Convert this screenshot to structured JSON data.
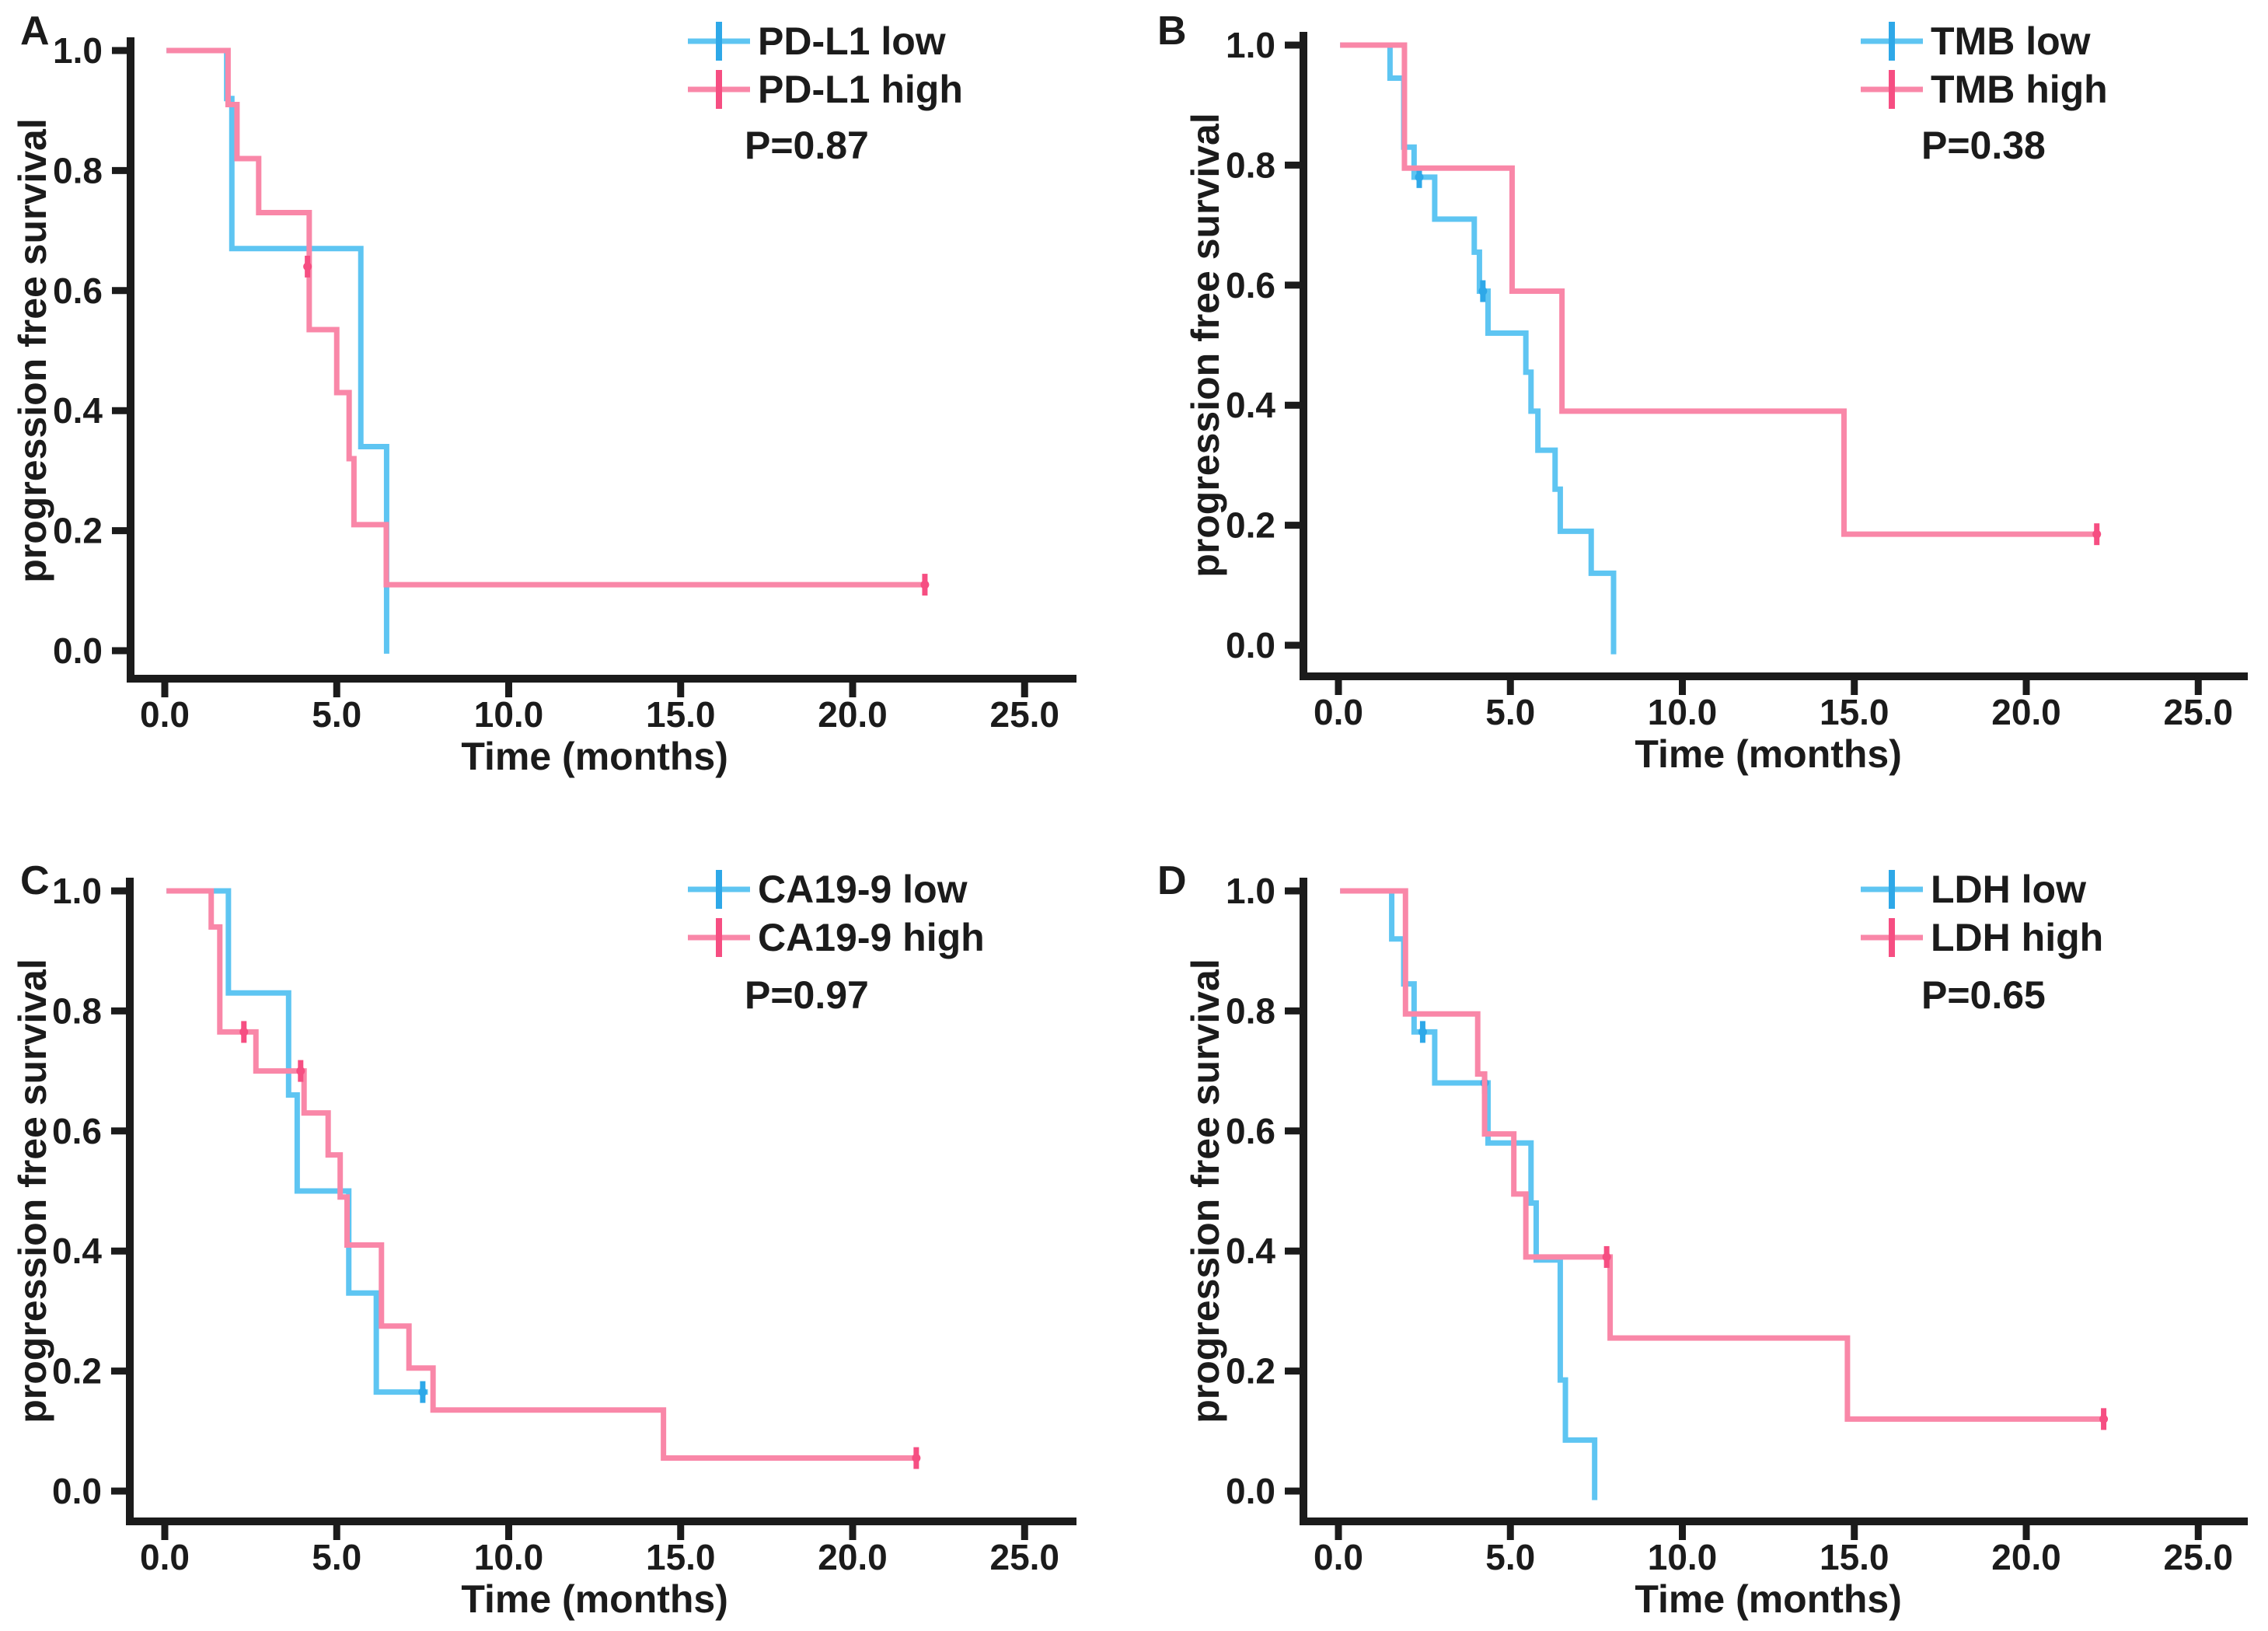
{
  "figure": {
    "background": "#ffffff",
    "text_color": "#1b1b1b",
    "blue": "#5EC5F2",
    "pink": "#F987A8"
  },
  "chart_data": [
    {
      "type": "km-step",
      "panel": "A",
      "letter": "A",
      "xlabel": "Time (months)",
      "ylabel": "progression free survival",
      "p_label": "P=0.87",
      "xlim": [
        0,
        26.5
      ],
      "ylim": [
        0,
        1
      ],
      "x_tick_values": [
        0,
        5,
        10,
        15,
        20,
        25
      ],
      "x_tick_labels": [
        "0.0",
        "5.0",
        "10.0",
        "15.0",
        "20.0",
        "25.0"
      ],
      "y_tick_values": [
        1.0,
        0.8,
        0.6,
        0.4,
        0.2,
        0.0
      ],
      "y_tick_labels": [
        "1.0",
        "0.8",
        "0.6",
        "0.4",
        "0.2",
        "0.0"
      ],
      "legend_position": "top-right",
      "grid": false,
      "series": [
        {
          "name": "PD-L1 low",
          "color": "#5EC5F2",
          "censor_color": "#2EA8E8",
          "points": [
            [
              0.05,
              1.0
            ],
            [
              1.8,
              0.92
            ],
            [
              1.95,
              0.67
            ],
            [
              5.7,
              0.34
            ],
            [
              6.45,
              -0.005
            ]
          ],
          "censors": []
        },
        {
          "name": "PD-L1 high",
          "color": "#F987A8",
          "censor_color": "#F64E82",
          "points": [
            [
              0.05,
              1.0
            ],
            [
              1.84,
              0.91
            ],
            [
              2.1,
              0.82
            ],
            [
              2.73,
              0.73
            ],
            [
              4.2,
              0.535
            ],
            [
              5.0,
              0.43
            ],
            [
              5.36,
              0.32
            ],
            [
              5.5,
              0.21
            ],
            [
              6.44,
              0.11
            ],
            [
              22.2,
              0.11
            ]
          ],
          "censors": [
            [
              4.15,
              0.64
            ],
            [
              22.1,
              0.11
            ]
          ]
        }
      ]
    },
    {
      "type": "km-step",
      "panel": "B",
      "letter": "B",
      "xlabel": "Time (months)",
      "ylabel": "progression free survival",
      "p_label": "P=0.38",
      "xlim": [
        0,
        26.5
      ],
      "ylim": [
        0,
        1
      ],
      "x_tick_values": [
        0,
        5,
        10,
        15,
        20,
        25
      ],
      "x_tick_labels": [
        "0.0",
        "5.0",
        "10.0",
        "15.0",
        "20.0",
        "25.0"
      ],
      "y_tick_values": [
        1.0,
        0.8,
        0.6,
        0.4,
        0.2,
        0.0
      ],
      "y_tick_labels": [
        "1.0",
        "0.8",
        "0.6",
        "0.4",
        "0.2",
        "0.0"
      ],
      "legend_position": "top-right",
      "grid": false,
      "series": [
        {
          "name": "TMB low",
          "color": "#5EC5F2",
          "censor_color": "#2EA8E8",
          "points": [
            [
              0.05,
              1.0
            ],
            [
              1.5,
              0.945
            ],
            [
              1.9,
              0.83
            ],
            [
              2.2,
              0.78
            ],
            [
              2.8,
              0.71
            ],
            [
              3.95,
              0.655
            ],
            [
              4.1,
              0.59
            ],
            [
              4.35,
              0.52
            ],
            [
              5.45,
              0.455
            ],
            [
              5.6,
              0.39
            ],
            [
              5.8,
              0.325
            ],
            [
              6.3,
              0.26
            ],
            [
              6.45,
              0.19
            ],
            [
              7.35,
              0.12
            ],
            [
              8.0,
              -0.015
            ]
          ],
          "censors": [
            [
              2.35,
              0.78
            ],
            [
              4.2,
              0.59
            ]
          ]
        },
        {
          "name": "TMB high",
          "color": "#F987A8",
          "censor_color": "#F64E82",
          "points": [
            [
              0.05,
              1.0
            ],
            [
              1.92,
              0.795
            ],
            [
              5.05,
              0.59
            ],
            [
              6.5,
              0.39
            ],
            [
              14.7,
              0.185
            ],
            [
              22.15,
              0.185
            ]
          ],
          "censors": [
            [
              22.05,
              0.185
            ]
          ]
        }
      ]
    },
    {
      "type": "km-step",
      "panel": "C",
      "letter": "C",
      "xlabel": "Time (months)",
      "ylabel": "progression free survival",
      "p_label": "P=0.97",
      "xlim": [
        0,
        26.5
      ],
      "ylim": [
        0,
        1
      ],
      "x_tick_values": [
        0,
        5,
        10,
        15,
        20,
        25
      ],
      "x_tick_labels": [
        "0.0",
        "5.0",
        "10.0",
        "15.0",
        "20.0",
        "25.0"
      ],
      "y_tick_values": [
        1.0,
        0.8,
        0.6,
        0.4,
        0.2,
        0.0
      ],
      "y_tick_labels": [
        "1.0",
        "0.8",
        "0.6",
        "0.4",
        "0.2",
        "0.0"
      ],
      "legend_position": "top-right",
      "grid": false,
      "series": [
        {
          "name": "CA19-9 low",
          "color": "#5EC5F2",
          "censor_color": "#2EA8E8",
          "points": [
            [
              0.05,
              1.0
            ],
            [
              1.85,
              0.83
            ],
            [
              3.6,
              0.66
            ],
            [
              3.85,
              0.5
            ],
            [
              5.35,
              0.33
            ],
            [
              6.15,
              0.165
            ],
            [
              7.65,
              0.165
            ]
          ],
          "censors": [
            [
              7.5,
              0.165
            ]
          ]
        },
        {
          "name": "CA19-9 high",
          "color": "#F987A8",
          "censor_color": "#F64E82",
          "points": [
            [
              0.05,
              1.0
            ],
            [
              1.35,
              0.94
            ],
            [
              1.6,
              0.765
            ],
            [
              2.65,
              0.7
            ],
            [
              4.05,
              0.63
            ],
            [
              4.75,
              0.56
            ],
            [
              5.1,
              0.49
            ],
            [
              5.3,
              0.41
            ],
            [
              6.3,
              0.275
            ],
            [
              7.1,
              0.205
            ],
            [
              7.8,
              0.135
            ],
            [
              14.5,
              0.055
            ],
            [
              21.95,
              0.055
            ]
          ],
          "censors": [
            [
              2.3,
              0.765
            ],
            [
              3.95,
              0.7
            ],
            [
              21.85,
              0.055
            ]
          ]
        }
      ]
    },
    {
      "type": "km-step",
      "panel": "D",
      "letter": "D",
      "xlabel": "Time (months)",
      "ylabel": "progression free survival",
      "p_label": "P=0.65",
      "xlim": [
        0,
        26.5
      ],
      "ylim": [
        0,
        1
      ],
      "x_tick_values": [
        0,
        5,
        10,
        15,
        20,
        25
      ],
      "x_tick_labels": [
        "0.0",
        "5.0",
        "10.0",
        "15.0",
        "20.0",
        "25.0"
      ],
      "y_tick_values": [
        1.0,
        0.8,
        0.6,
        0.4,
        0.2,
        0.0
      ],
      "y_tick_labels": [
        "1.0",
        "0.8",
        "0.6",
        "0.4",
        "0.2",
        "0.0"
      ],
      "legend_position": "top-right",
      "grid": false,
      "series": [
        {
          "name": "LDH low",
          "color": "#5EC5F2",
          "censor_color": "#2EA8E8",
          "points": [
            [
              0.05,
              1.0
            ],
            [
              1.55,
              0.92
            ],
            [
              1.9,
              0.845
            ],
            [
              2.2,
              0.765
            ],
            [
              2.8,
              0.68
            ],
            [
              4.35,
              0.58
            ],
            [
              5.6,
              0.48
            ],
            [
              5.75,
              0.385
            ],
            [
              6.45,
              0.185
            ],
            [
              6.6,
              0.085
            ],
            [
              7.45,
              -0.015
            ]
          ],
          "censors": [
            [
              2.45,
              0.765
            ],
            [
              4.25,
              0.68
            ]
          ]
        },
        {
          "name": "LDH high",
          "color": "#F987A8",
          "censor_color": "#F64E82",
          "points": [
            [
              0.05,
              1.0
            ],
            [
              1.95,
              0.795
            ],
            [
              4.05,
              0.695
            ],
            [
              4.25,
              0.595
            ],
            [
              5.1,
              0.495
            ],
            [
              5.45,
              0.39
            ],
            [
              7.9,
              0.255
            ],
            [
              14.8,
              0.12
            ],
            [
              22.35,
              0.12
            ]
          ],
          "censors": [
            [
              7.8,
              0.39
            ],
            [
              22.25,
              0.12
            ]
          ]
        }
      ]
    }
  ]
}
